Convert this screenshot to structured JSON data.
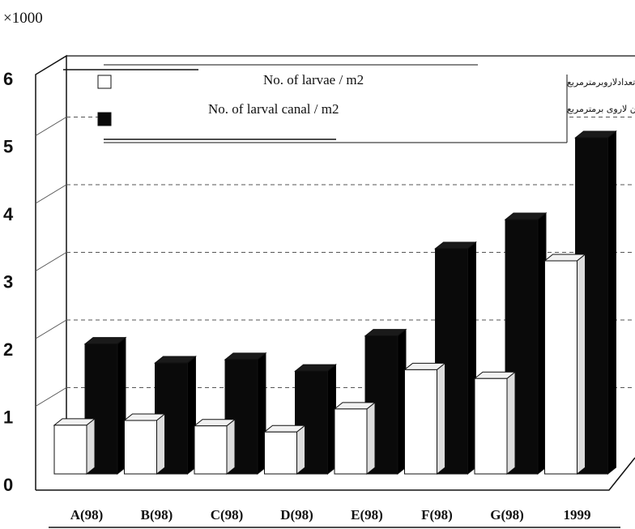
{
  "chart_data": {
    "type": "bar",
    "multiplier_label": "×1000",
    "categories": [
      "A(98)",
      "B(98)",
      "C(98)",
      "D(98)",
      "E(98)",
      "F(98)",
      "G(98)",
      "1999"
    ],
    "series": [
      {
        "name": "No. of larvae / m2",
        "name_fa": "تعدادلاروبرمترمربع",
        "color": "#ffffff",
        "values": [
          0.72,
          0.79,
          0.71,
          0.62,
          0.96,
          1.54,
          1.41,
          3.15
        ]
      },
      {
        "name": "No. of larval canal  / m2",
        "name_fa": "تعداددالان لاروی برمترمربع",
        "color": "#0a0a0a",
        "values": [
          1.92,
          1.64,
          1.69,
          1.52,
          2.04,
          3.33,
          3.76,
          4.97
        ]
      }
    ],
    "y_ticks": [
      "0",
      "1",
      "2",
      "3",
      "4",
      "5",
      "6"
    ],
    "ylim": [
      0,
      6
    ],
    "grid": true,
    "legend_position": "top"
  }
}
